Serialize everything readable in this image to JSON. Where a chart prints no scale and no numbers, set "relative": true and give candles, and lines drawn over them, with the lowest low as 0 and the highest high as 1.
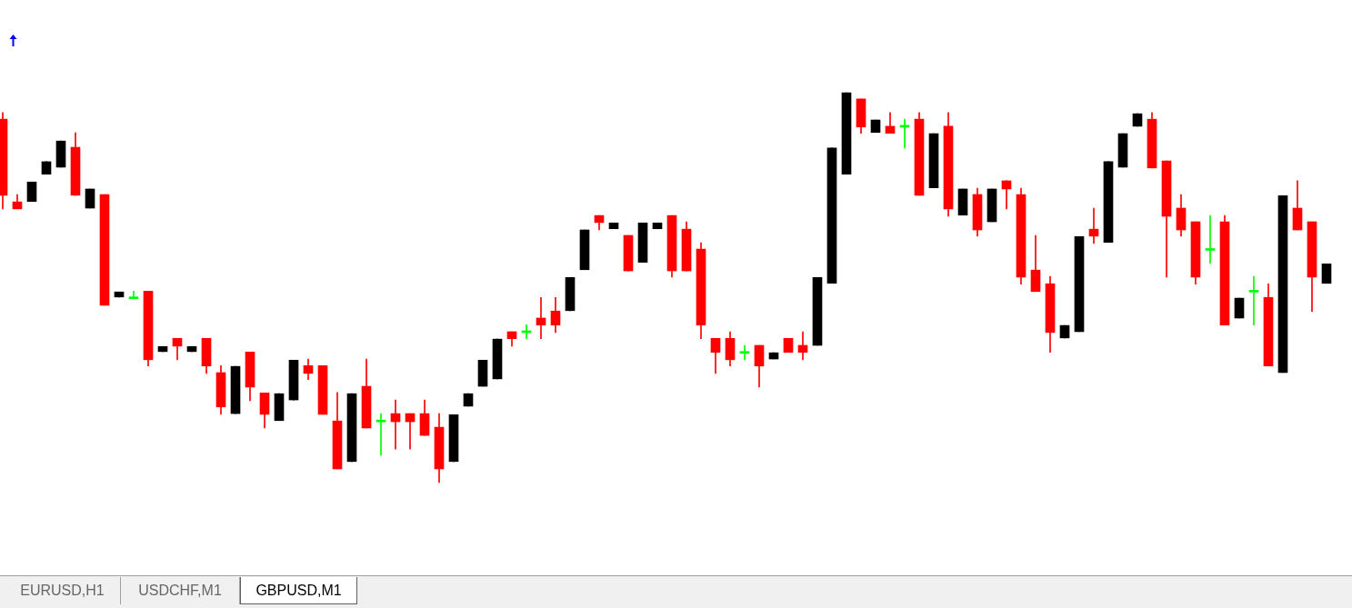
{
  "chart_data": {
    "type": "candlestick",
    "relative": true,
    "tick_labels": false,
    "categories": [
      null,
      null,
      null,
      null,
      null,
      null,
      null,
      null,
      null,
      null,
      null,
      null,
      null,
      null,
      null,
      null,
      null,
      null,
      null,
      null,
      null,
      null,
      null,
      null,
      null,
      null,
      null,
      null,
      null,
      null,
      null,
      null,
      null,
      null,
      null,
      null,
      null,
      null,
      null,
      null,
      null,
      null,
      null,
      null,
      null,
      null,
      null,
      null,
      null,
      null,
      null,
      null,
      null,
      null,
      null,
      null,
      null,
      null,
      null,
      null,
      null,
      null,
      null,
      null,
      null,
      null,
      null,
      null,
      null,
      null,
      null,
      null,
      null,
      null,
      null,
      null,
      null,
      null,
      null,
      null,
      null,
      null,
      null,
      null,
      null,
      null,
      null,
      null,
      null,
      null,
      null,
      null
    ],
    "ohlc": [
      [
        0.932,
        0.949,
        0.702,
        0.737
      ],
      [
        0.72,
        0.739,
        0.702,
        0.702
      ],
      [
        0.721,
        0.771,
        0.721,
        0.771
      ],
      [
        0.791,
        0.823,
        0.791,
        0.823
      ],
      [
        0.809,
        0.876,
        0.809,
        0.876
      ],
      [
        0.86,
        0.897,
        0.737,
        0.737
      ],
      [
        0.704,
        0.753,
        0.704,
        0.753
      ],
      [
        0.739,
        0.739,
        0.455,
        0.455
      ],
      [
        0.476,
        0.489,
        0.476,
        0.489
      ],
      [
        0.474,
        0.491,
        0.474,
        0.474
      ],
      [
        0.491,
        0.491,
        0.299,
        0.315
      ],
      [
        0.336,
        0.349,
        0.336,
        0.349
      ],
      [
        0.37,
        0.37,
        0.315,
        0.35
      ],
      [
        0.336,
        0.349,
        0.336,
        0.349
      ],
      [
        0.37,
        0.37,
        0.28,
        0.299
      ],
      [
        0.282,
        0.3,
        0.175,
        0.194
      ],
      [
        0.177,
        0.298,
        0.177,
        0.298
      ],
      [
        0.335,
        0.335,
        0.21,
        0.245
      ],
      [
        0.23,
        0.23,
        0.14,
        0.175
      ],
      [
        0.159,
        0.228,
        0.159,
        0.228
      ],
      [
        0.212,
        0.314,
        0.212,
        0.314
      ],
      [
        0.3,
        0.317,
        0.264,
        0.28
      ],
      [
        0.3,
        0.3,
        0.175,
        0.175
      ],
      [
        0.158,
        0.231,
        0.035,
        0.035
      ],
      [
        0.054,
        0.228,
        0.054,
        0.228
      ],
      [
        0.247,
        0.317,
        0.14,
        0.14
      ],
      [
        0.158,
        0.177,
        0.07,
        0.158
      ],
      [
        0.177,
        0.212,
        0.086,
        0.156
      ],
      [
        0.177,
        0.177,
        0.086,
        0.156
      ],
      [
        0.177,
        0.212,
        0.121,
        0.121
      ],
      [
        0.142,
        0.177,
        0,
        0.035
      ],
      [
        0.054,
        0.174,
        0.054,
        0.174
      ],
      [
        0.196,
        0.228,
        0.196,
        0.228
      ],
      [
        0.247,
        0.314,
        0.247,
        0.314
      ],
      [
        0.266,
        0.368,
        0.266,
        0.368
      ],
      [
        0.387,
        0.387,
        0.35,
        0.369
      ],
      [
        0.387,
        0.405,
        0.369,
        0.387
      ],
      [
        0.422,
        0.475,
        0.369,
        0.404
      ],
      [
        0.44,
        0.475,
        0.385,
        0.404
      ],
      [
        0.441,
        0.526,
        0.441,
        0.526
      ],
      [
        0.546,
        0.648,
        0.546,
        0.648
      ],
      [
        0.685,
        0.685,
        0.648,
        0.667
      ],
      [
        0.651,
        0.666,
        0.651,
        0.666
      ],
      [
        0.634,
        0.634,
        0.543,
        0.543
      ],
      [
        0.565,
        0.666,
        0.565,
        0.666
      ],
      [
        0.651,
        0.666,
        0.651,
        0.666
      ],
      [
        0.685,
        0.685,
        0.527,
        0.543
      ],
      [
        0.65,
        0.669,
        0.543,
        0.543
      ],
      [
        0.599,
        0.615,
        0.369,
        0.404
      ],
      [
        0.37,
        0.37,
        0.28,
        0.334
      ],
      [
        0.37,
        0.387,
        0.299,
        0.315
      ],
      [
        0.334,
        0.352,
        0.315,
        0.334
      ],
      [
        0.352,
        0.352,
        0.245,
        0.299
      ],
      [
        0.317,
        0.333,
        0.317,
        0.333
      ],
      [
        0.37,
        0.37,
        0.334,
        0.334
      ],
      [
        0.352,
        0.387,
        0.315,
        0.334
      ],
      [
        0.352,
        0.526,
        0.352,
        0.526
      ],
      [
        0.511,
        0.858,
        0.511,
        0.858
      ],
      [
        0.791,
        1,
        0.791,
        1
      ],
      [
        0.984,
        0.984,
        0.896,
        0.912
      ],
      [
        0.898,
        0.93,
        0.898,
        0.93
      ],
      [
        0.914,
        0.949,
        0.896,
        0.896
      ],
      [
        0.914,
        0.932,
        0.858,
        0.914
      ],
      [
        0.932,
        0.949,
        0.737,
        0.737
      ],
      [
        0.756,
        0.895,
        0.756,
        0.895
      ],
      [
        0.914,
        0.949,
        0.683,
        0.702
      ],
      [
        0.686,
        0.753,
        0.686,
        0.753
      ],
      [
        0.739,
        0.755,
        0.632,
        0.648
      ],
      [
        0.669,
        0.753,
        0.669,
        0.753
      ],
      [
        0.774,
        0.774,
        0.702,
        0.753
      ],
      [
        0.739,
        0.755,
        0.509,
        0.527
      ],
      [
        0.545,
        0.634,
        0.49,
        0.49
      ],
      [
        0.51,
        0.529,
        0.334,
        0.385
      ],
      [
        0.371,
        0.403,
        0.371,
        0.403
      ],
      [
        0.387,
        0.631,
        0.387,
        0.631
      ],
      [
        0.65,
        0.704,
        0.613,
        0.632
      ],
      [
        0.616,
        0.823,
        0.616,
        0.823
      ],
      [
        0.809,
        0.895,
        0.809,
        0.895
      ],
      [
        0.914,
        0.946,
        0.914,
        0.946
      ],
      [
        0.932,
        0.949,
        0.807,
        0.807
      ],
      [
        0.825,
        0.825,
        0.527,
        0.683
      ],
      [
        0.704,
        0.739,
        0.632,
        0.648
      ],
      [
        0.669,
        0.669,
        0.509,
        0.527
      ],
      [
        0.598,
        0.685,
        0.562,
        0.598
      ],
      [
        0.669,
        0.685,
        0.404,
        0.404
      ],
      [
        0.422,
        0.473,
        0.422,
        0.473
      ],
      [
        0.491,
        0.529,
        0.404,
        0.491
      ],
      [
        0.475,
        0.51,
        0.299,
        0.299
      ],
      [
        0.282,
        0.736,
        0.282,
        0.736
      ],
      [
        0.704,
        0.774,
        0.648,
        0.648
      ],
      [
        0.669,
        0.669,
        0.439,
        0.527
      ],
      [
        0.511,
        0.561,
        0.511,
        0.561
      ]
    ],
    "colors": [
      "#ff0000",
      "#ff0000",
      "#000000",
      "#000000",
      "#000000",
      "#ff0000",
      "#000000",
      "#ff0000",
      "#000000",
      "#00ff00",
      "#ff0000",
      "#000000",
      "#ff0000",
      "#000000",
      "#ff0000",
      "#ff0000",
      "#000000",
      "#ff0000",
      "#ff0000",
      "#000000",
      "#000000",
      "#ff0000",
      "#ff0000",
      "#ff0000",
      "#000000",
      "#ff0000",
      "#00ff00",
      "#ff0000",
      "#ff0000",
      "#ff0000",
      "#ff0000",
      "#000000",
      "#000000",
      "#000000",
      "#000000",
      "#ff0000",
      "#00ff00",
      "#ff0000",
      "#ff0000",
      "#000000",
      "#000000",
      "#ff0000",
      "#000000",
      "#ff0000",
      "#000000",
      "#000000",
      "#ff0000",
      "#ff0000",
      "#ff0000",
      "#ff0000",
      "#ff0000",
      "#00ff00",
      "#ff0000",
      "#000000",
      "#ff0000",
      "#ff0000",
      "#000000",
      "#000000",
      "#000000",
      "#ff0000",
      "#000000",
      "#ff0000",
      "#00ff00",
      "#ff0000",
      "#000000",
      "#ff0000",
      "#000000",
      "#ff0000",
      "#000000",
      "#ff0000",
      "#ff0000",
      "#ff0000",
      "#ff0000",
      "#000000",
      "#000000",
      "#ff0000",
      "#000000",
      "#000000",
      "#000000",
      "#ff0000",
      "#ff0000",
      "#ff0000",
      "#ff0000",
      "#00ff00",
      "#ff0000",
      "#000000",
      "#00ff00",
      "#ff0000",
      "#000000",
      "#ff0000",
      "#ff0000",
      "#000000"
    ],
    "annotations": [
      "EURUSD,H1",
      "USDCHF,M1",
      "GBPUSD,M1"
    ]
  }
}
